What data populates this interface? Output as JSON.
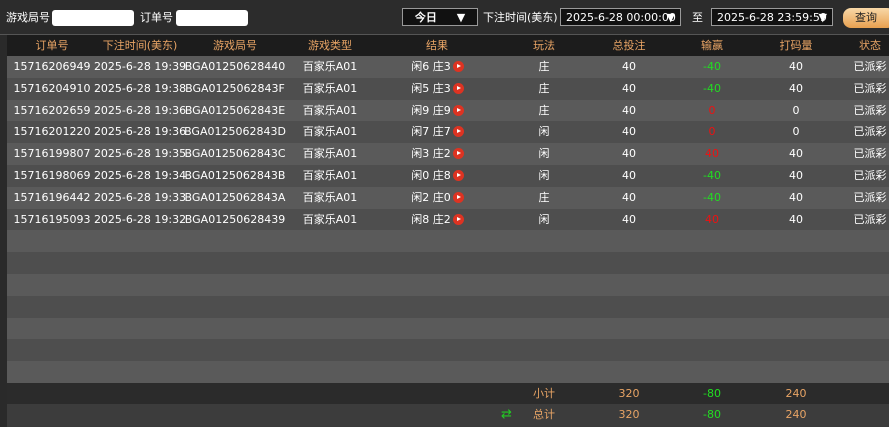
{
  "filters": {
    "round_label": "游戏局号",
    "order_label": "订单号",
    "period": "今日",
    "time_label": "下注时间(美东)",
    "start": "2025-6-28 00:00:00",
    "to": "至",
    "end": "2025-6-28 23:59:59",
    "query": "查询"
  },
  "table": {
    "columns": [
      "订单号",
      "下注时间(美东)",
      "游戏局号",
      "游戏类型",
      "结果",
      "玩法",
      "总投注",
      "输赢",
      "打码量",
      "状态"
    ],
    "rows": [
      [
        "15716206949",
        "2025-6-28 19:39",
        "BGA01250628440",
        "百家乐A01",
        "闲6 庄3",
        "庄",
        "40",
        "-40",
        "40",
        "已派彩"
      ],
      [
        "15716204910",
        "2025-6-28 19:38",
        "BGA0125062843F",
        "百家乐A01",
        "闲5 庄3",
        "庄",
        "40",
        "-40",
        "40",
        "已派彩"
      ],
      [
        "15716202659",
        "2025-6-28 19:36",
        "BGA0125062843E",
        "百家乐A01",
        "闲9 庄9",
        "庄",
        "40",
        "0",
        "0",
        "已派彩"
      ],
      [
        "15716201220",
        "2025-6-28 19:36",
        "BGA0125062843D",
        "百家乐A01",
        "闲7 庄7",
        "闲",
        "40",
        "0",
        "0",
        "已派彩"
      ],
      [
        "15716199807",
        "2025-6-28 19:35",
        "BGA0125062843C",
        "百家乐A01",
        "闲3 庄2",
        "闲",
        "40",
        "40",
        "40",
        "已派彩"
      ],
      [
        "15716198069",
        "2025-6-28 19:34",
        "BGA0125062843B",
        "百家乐A01",
        "闲0 庄8",
        "闲",
        "40",
        "-40",
        "40",
        "已派彩"
      ],
      [
        "15716196442",
        "2025-6-28 19:33",
        "BGA0125062843A",
        "百家乐A01",
        "闲2 庄0",
        "庄",
        "40",
        "-40",
        "40",
        "已派彩"
      ],
      [
        "15716195093",
        "2025-6-28 19:32",
        "BGA01250628439",
        "百家乐A01",
        "闲8 庄2",
        "闲",
        "40",
        "40",
        "40",
        "已派彩"
      ]
    ],
    "subtotal": {
      "label": "小计",
      "stake": "320",
      "win": "-80",
      "turnover": "240"
    },
    "total": {
      "label": "总计",
      "stake": "320",
      "win": "-80",
      "turnover": "240"
    }
  }
}
